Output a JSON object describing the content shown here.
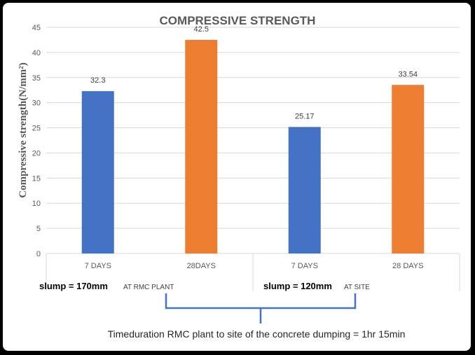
{
  "chart_data": {
    "type": "bar",
    "title": "COMPRESSIVE STRENGTH",
    "ylabel": "Compressive strength(N/mm²)",
    "xlabel": "",
    "ylim": [
      0,
      45
    ],
    "yticks": [
      0,
      5,
      10,
      15,
      20,
      25,
      30,
      35,
      40,
      45
    ],
    "categories": [
      "7 DAYS",
      "28DAYS",
      "7 DAYS",
      "28 DAYS"
    ],
    "values": [
      32.3,
      42.5,
      25.17,
      33.54
    ],
    "value_labels": [
      "32.3",
      "42.5",
      "25.17",
      "33.54"
    ],
    "bar_colors": [
      "#4472C4",
      "#ED7D31",
      "#4472C4",
      "#ED7D31"
    ],
    "groups": [
      {
        "slump": "slump = 170mm",
        "location": "AT RMC PLANT"
      },
      {
        "slump": "slump = 120mm",
        "location": "AT SITE"
      }
    ],
    "annotation": "Timeduration RMC plant to site of the concrete dumping = 1hr 15min",
    "grid": true
  },
  "colors": {
    "background": "#ffffff",
    "frame": "#000000",
    "grid": "#D9D9D9",
    "bracket": "#4472C4"
  }
}
